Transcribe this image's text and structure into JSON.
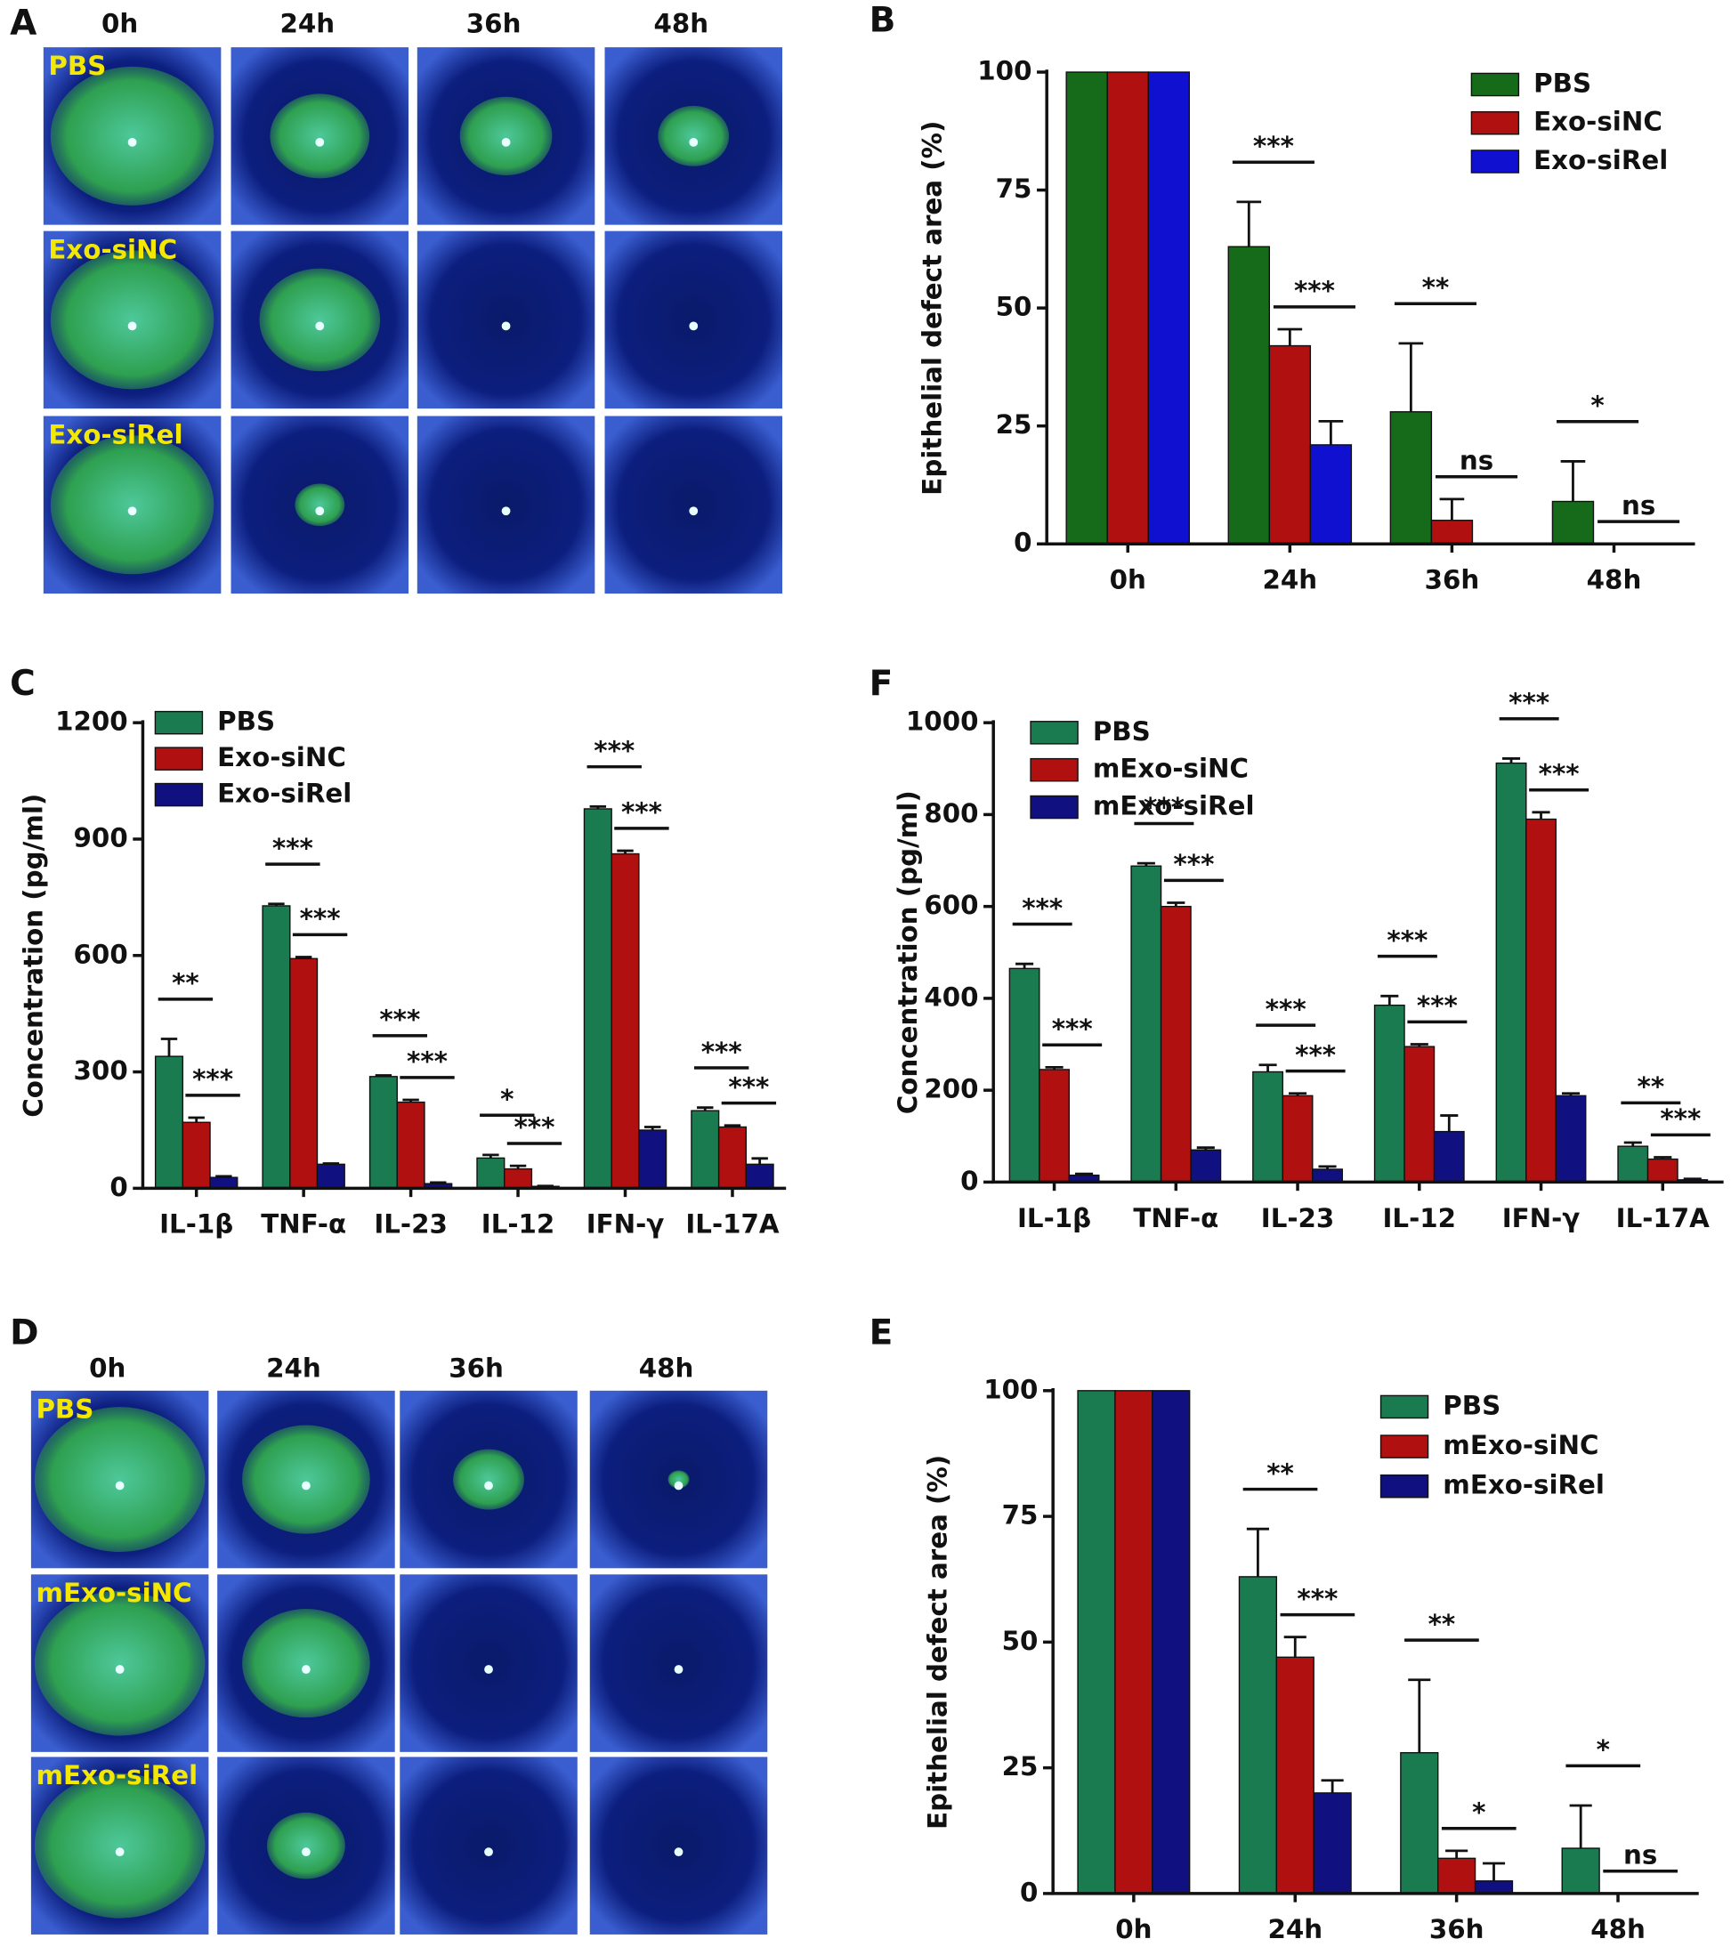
{
  "photo_panels": [
    {
      "label": "A",
      "columns": [
        "0h",
        "24h",
        "36h",
        "48h"
      ],
      "rows": [
        "PBS",
        "Exo-siNC",
        "Exo-siRel"
      ]
    },
    {
      "label": "D",
      "columns": [
        "0h",
        "24h",
        "36h",
        "48h"
      ],
      "rows": [
        "PBS",
        "mExo-siNC",
        "mExo-siRel"
      ]
    }
  ],
  "chart_data": [
    {
      "type": "bar",
      "label": "B",
      "y_label": "Epithelial defect area (%)",
      "categories": [
        "0h",
        "24h",
        "36h",
        "48h"
      ],
      "series": [
        {
          "name": "PBS",
          "color": "#156b1a",
          "values": [
            100,
            63,
            28,
            9
          ],
          "errors": [
            0,
            9.5,
            14.5,
            8.5
          ]
        },
        {
          "name": "Exo-siNC",
          "color": "#b01010",
          "values": [
            100,
            42,
            5,
            0
          ],
          "errors": [
            0,
            3.5,
            4.5,
            0
          ]
        },
        {
          "name": "Exo-siRel",
          "color": "#1010d0",
          "values": [
            100,
            21,
            0,
            0
          ],
          "errors": [
            0,
            5,
            0,
            0
          ]
        }
      ],
      "ylim": [
        0,
        100
      ],
      "yticks": [
        0,
        25,
        50,
        75,
        100
      ],
      "annotations": [
        {
          "text": "***",
          "category": 1,
          "pair": [
            0,
            1
          ]
        },
        {
          "text": "***",
          "category": 1,
          "pair": [
            1,
            2
          ]
        },
        {
          "text": "**",
          "category": 2,
          "pair": [
            0,
            1
          ]
        },
        {
          "text": "ns",
          "category": 2,
          "pair": [
            1,
            2
          ]
        },
        {
          "text": "*",
          "category": 3,
          "pair": [
            0,
            1
          ]
        },
        {
          "text": "ns",
          "category": 3,
          "pair": [
            1,
            2
          ]
        }
      ]
    },
    {
      "type": "bar",
      "label": "C",
      "y_label": "Concentration (pg/ml)",
      "categories": [
        "IL-1β",
        "TNF-α",
        "IL-23",
        "IL-12",
        "IFN-γ",
        "IL-17A"
      ],
      "series": [
        {
          "name": "PBS",
          "color": "#1a7a50",
          "values": [
            340,
            728,
            288,
            78,
            978,
            200
          ],
          "errors": [
            45,
            5,
            3,
            8,
            6,
            8
          ]
        },
        {
          "name": "Exo-siNC",
          "color": "#b01010",
          "values": [
            170,
            592,
            222,
            50,
            862,
            158
          ],
          "errors": [
            12,
            4,
            6,
            8,
            8,
            4
          ]
        },
        {
          "name": "Exo-siRel",
          "color": "#101080",
          "values": [
            28,
            62,
            12,
            5,
            150,
            62
          ],
          "errors": [
            3,
            2,
            3,
            1,
            8,
            15
          ]
        }
      ],
      "ylim": [
        0,
        1200
      ],
      "yticks": [
        0,
        300,
        600,
        900,
        1200
      ],
      "annotations": [
        {
          "text": "**",
          "category": 0,
          "pair": [
            0,
            1
          ]
        },
        {
          "text": "***",
          "category": 0,
          "pair": [
            1,
            2
          ]
        },
        {
          "text": "***",
          "category": 1,
          "pair": [
            0,
            1
          ]
        },
        {
          "text": "***",
          "category": 1,
          "pair": [
            1,
            2
          ]
        },
        {
          "text": "***",
          "category": 2,
          "pair": [
            0,
            1
          ]
        },
        {
          "text": "***",
          "category": 2,
          "pair": [
            1,
            2
          ]
        },
        {
          "text": "*",
          "category": 3,
          "pair": [
            0,
            1
          ]
        },
        {
          "text": "***",
          "category": 3,
          "pair": [
            1,
            2
          ]
        },
        {
          "text": "***",
          "category": 4,
          "pair": [
            0,
            1
          ]
        },
        {
          "text": "***",
          "category": 4,
          "pair": [
            1,
            2
          ]
        },
        {
          "text": "***",
          "category": 5,
          "pair": [
            0,
            1
          ]
        },
        {
          "text": "***",
          "category": 5,
          "pair": [
            1,
            2
          ]
        }
      ]
    },
    {
      "type": "bar",
      "label": "F",
      "y_label": "Concentration (pg/ml)",
      "categories": [
        "IL-1β",
        "TNF-α",
        "IL-23",
        "IL-12",
        "IFN-γ",
        "IL-17A"
      ],
      "series": [
        {
          "name": "PBS",
          "color": "#1a7a50",
          "values": [
            465,
            688,
            240,
            385,
            912,
            78
          ],
          "errors": [
            10,
            6,
            15,
            20,
            10,
            8
          ]
        },
        {
          "name": "mExo-siNC",
          "color": "#b01010",
          "values": [
            245,
            600,
            188,
            295,
            790,
            50
          ],
          "errors": [
            5,
            8,
            5,
            5,
            15,
            4
          ]
        },
        {
          "name": "mExo-siRel",
          "color": "#101080",
          "values": [
            15,
            70,
            28,
            110,
            188,
            5
          ],
          "errors": [
            3,
            5,
            6,
            35,
            5,
            2
          ]
        }
      ],
      "ylim": [
        0,
        1000
      ],
      "yticks": [
        0,
        200,
        400,
        600,
        800,
        1000
      ],
      "annotations": [
        {
          "text": "***",
          "category": 0,
          "pair": [
            0,
            1
          ]
        },
        {
          "text": "***",
          "category": 0,
          "pair": [
            1,
            2
          ]
        },
        {
          "text": "***",
          "category": 1,
          "pair": [
            0,
            1
          ]
        },
        {
          "text": "***",
          "category": 1,
          "pair": [
            1,
            2
          ]
        },
        {
          "text": "***",
          "category": 2,
          "pair": [
            0,
            1
          ]
        },
        {
          "text": "***",
          "category": 2,
          "pair": [
            1,
            2
          ]
        },
        {
          "text": "***",
          "category": 3,
          "pair": [
            0,
            1
          ]
        },
        {
          "text": "***",
          "category": 3,
          "pair": [
            1,
            2
          ]
        },
        {
          "text": "***",
          "category": 4,
          "pair": [
            0,
            1
          ]
        },
        {
          "text": "***",
          "category": 4,
          "pair": [
            1,
            2
          ]
        },
        {
          "text": "**",
          "category": 5,
          "pair": [
            0,
            1
          ]
        },
        {
          "text": "***",
          "category": 5,
          "pair": [
            1,
            2
          ]
        }
      ]
    },
    {
      "type": "bar",
      "label": "E",
      "y_label": "Epithelial defect area (%)",
      "categories": [
        "0h",
        "24h",
        "36h",
        "48h"
      ],
      "series": [
        {
          "name": "PBS",
          "color": "#1a7a50",
          "values": [
            100,
            63,
            28,
            9
          ],
          "errors": [
            0,
            9.5,
            14.5,
            8.5
          ]
        },
        {
          "name": "mExo-siNC",
          "color": "#b01010",
          "values": [
            100,
            47,
            7,
            0
          ],
          "errors": [
            0,
            4,
            1.5,
            0
          ]
        },
        {
          "name": "mExo-siRel",
          "color": "#101080",
          "values": [
            100,
            20,
            2.5,
            0
          ],
          "errors": [
            0,
            2.5,
            3.5,
            0
          ]
        }
      ],
      "ylim": [
        0,
        100
      ],
      "yticks": [
        0,
        25,
        50,
        75,
        100
      ],
      "annotations": [
        {
          "text": "**",
          "category": 1,
          "pair": [
            0,
            1
          ]
        },
        {
          "text": "***",
          "category": 1,
          "pair": [
            1,
            2
          ]
        },
        {
          "text": "**",
          "category": 2,
          "pair": [
            0,
            1
          ]
        },
        {
          "text": "*",
          "category": 2,
          "pair": [
            1,
            2
          ]
        },
        {
          "text": "*",
          "category": 3,
          "pair": [
            0,
            1
          ]
        },
        {
          "text": "ns",
          "category": 3,
          "pair": [
            1,
            2
          ]
        }
      ]
    }
  ]
}
